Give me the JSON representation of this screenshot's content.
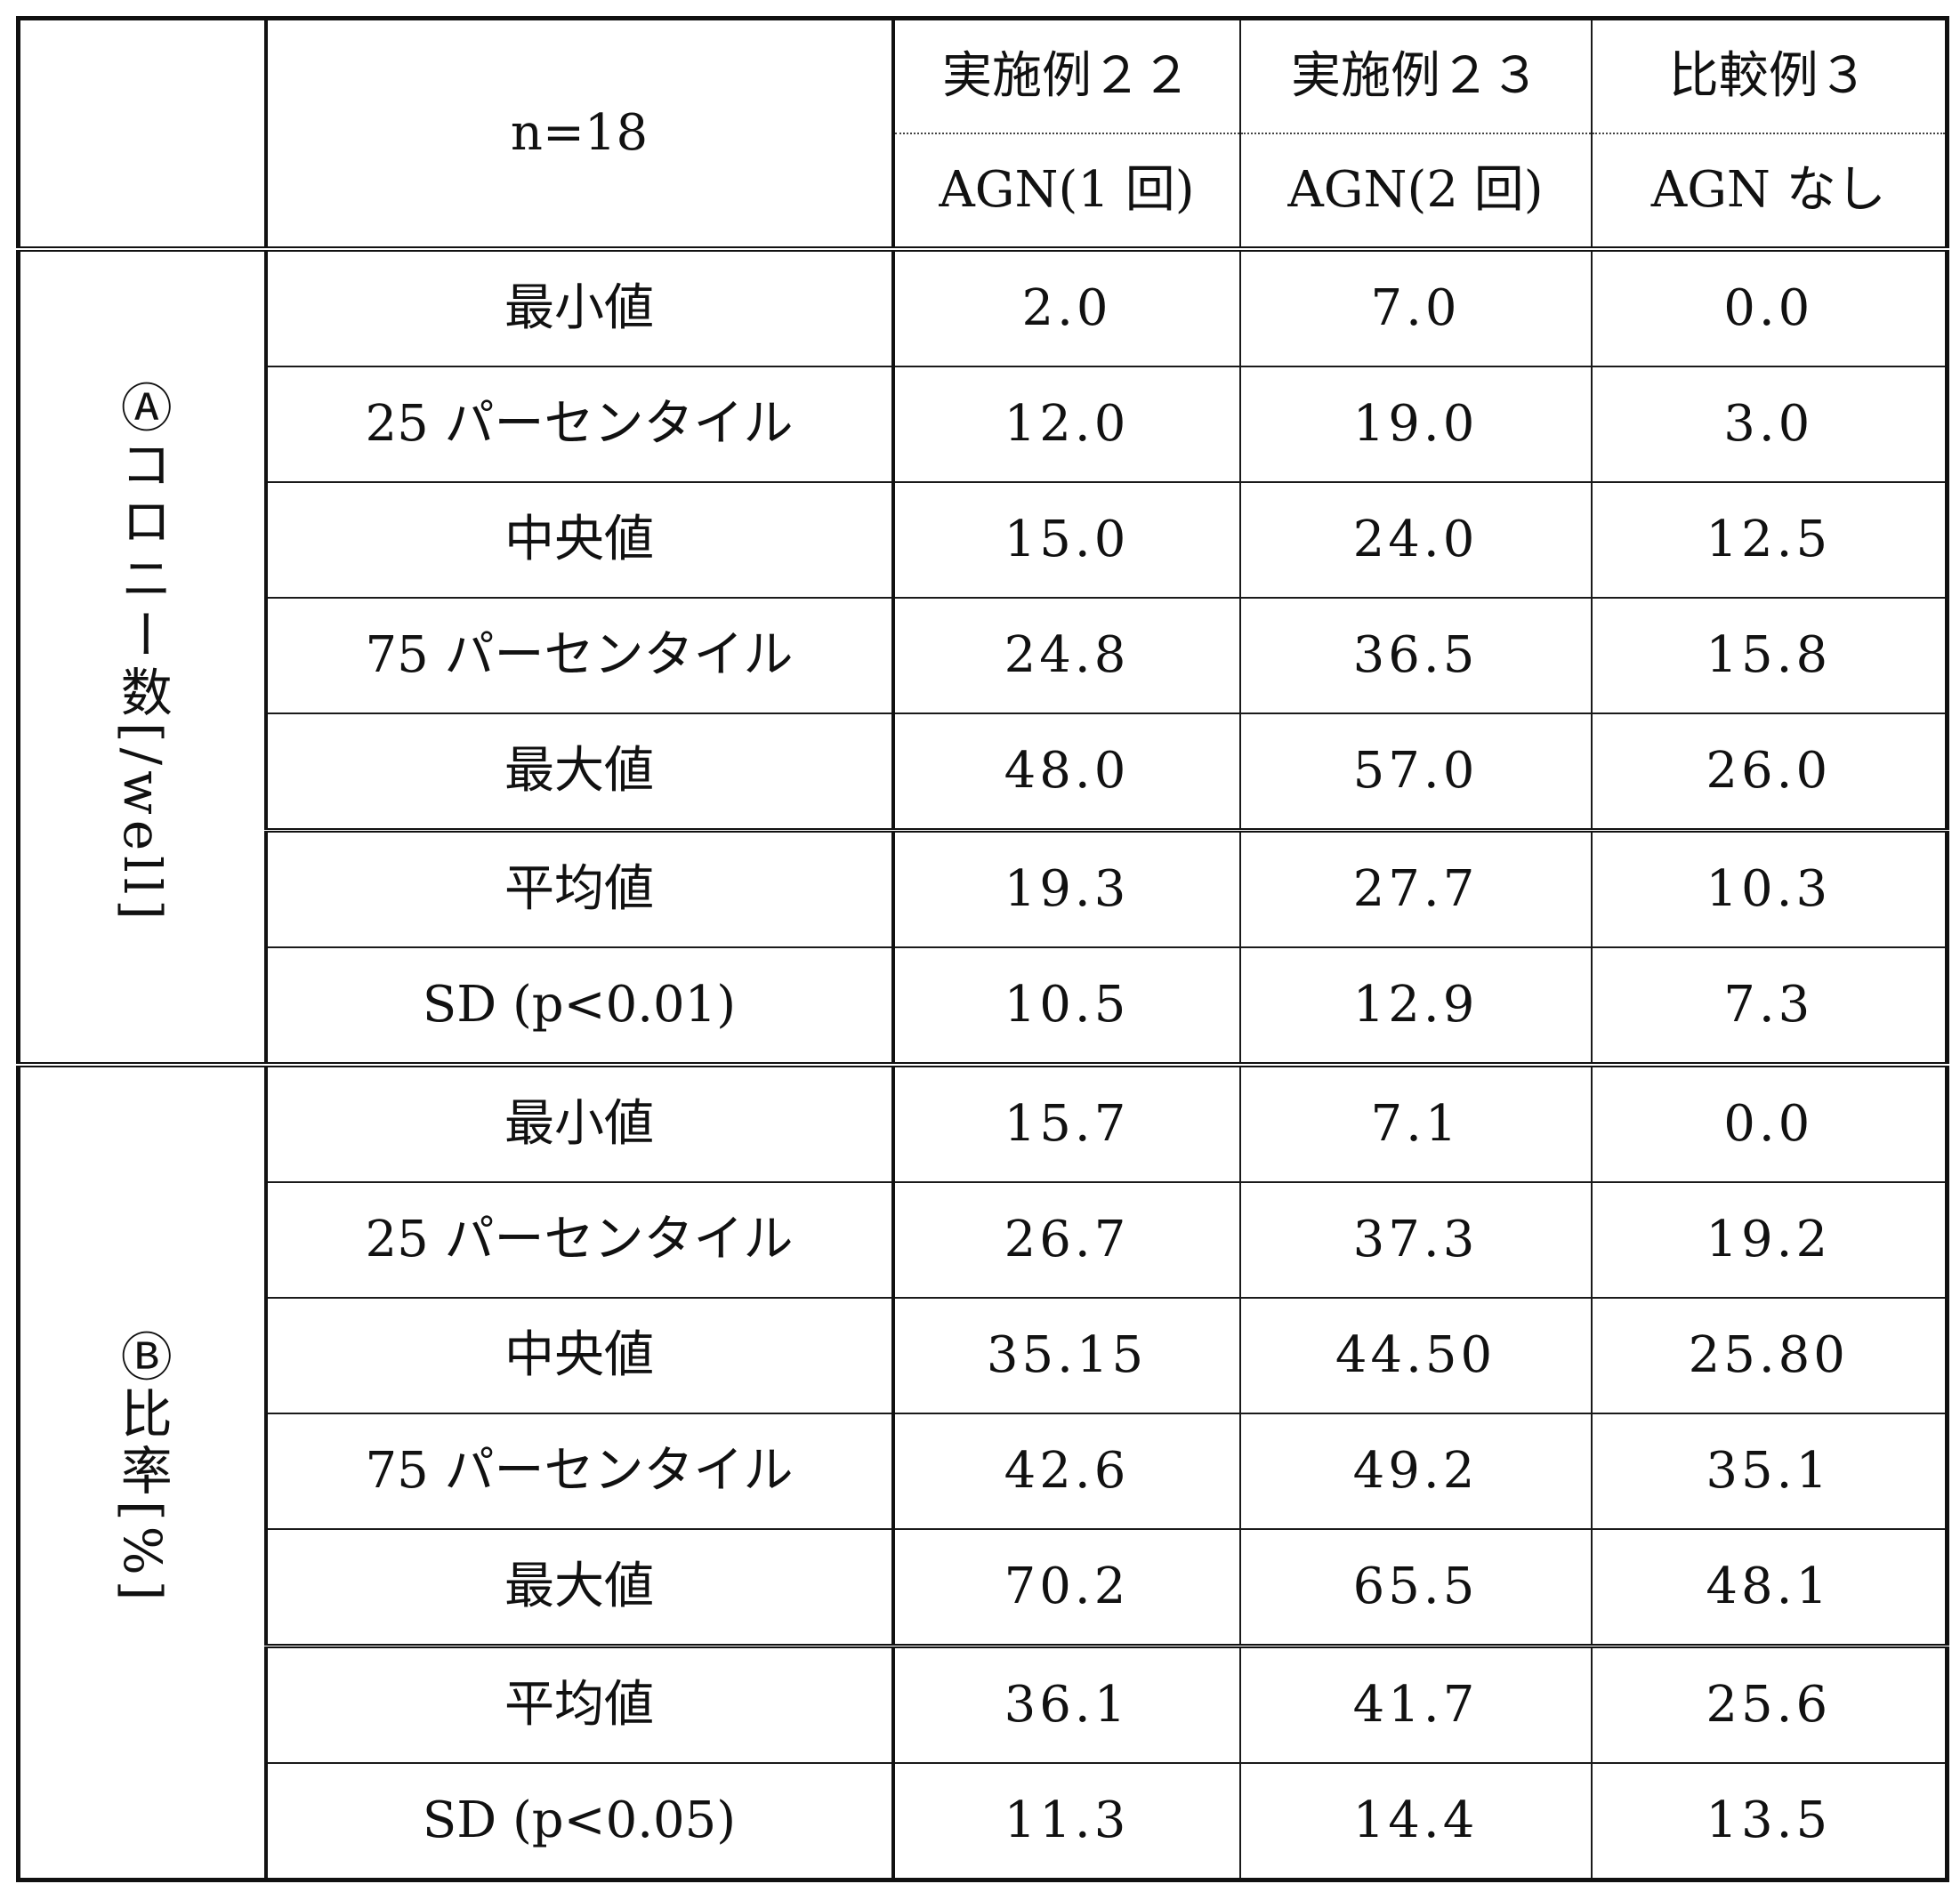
{
  "header": {
    "n_label": "n=18",
    "columns": [
      {
        "name": "実施例２２",
        "condition": "AGN(1 回)"
      },
      {
        "name": "実施例２３",
        "condition": "AGN(2 回)"
      },
      {
        "name": "比較例３",
        "condition": "AGN なし"
      }
    ]
  },
  "sections": [
    {
      "label_prefix": "Ⓐ",
      "label_text": "コロニー数",
      "label_unit": "[/well]",
      "rows": [
        {
          "label": "最小値",
          "values": [
            "2.0",
            "7.0",
            "0.0"
          ]
        },
        {
          "label": "25 パーセンタイル",
          "values": [
            "12.0",
            "19.0",
            "3.0"
          ]
        },
        {
          "label": "中央値",
          "values": [
            "15.0",
            "24.0",
            "12.5"
          ]
        },
        {
          "label": "75 パーセンタイル",
          "values": [
            "24.8",
            "36.5",
            "15.8"
          ]
        },
        {
          "label": "最大値",
          "values": [
            "48.0",
            "57.0",
            "26.0"
          ]
        },
        {
          "label": "平均値",
          "values": [
            "19.3",
            "27.7",
            "10.3"
          ]
        },
        {
          "label": "SD (p<0.01)",
          "values": [
            "10.5",
            "12.9",
            "7.3"
          ]
        }
      ]
    },
    {
      "label_prefix": "Ⓑ",
      "label_text": "比率",
      "label_unit": "[%]",
      "rows": [
        {
          "label": "最小値",
          "values": [
            "15.7",
            "7.1",
            "0.0"
          ]
        },
        {
          "label": "25 パーセンタイル",
          "values": [
            "26.7",
            "37.3",
            "19.2"
          ]
        },
        {
          "label": "中央値",
          "values": [
            "35.15",
            "44.50",
            "25.80"
          ]
        },
        {
          "label": "75 パーセンタイル",
          "values": [
            "42.6",
            "49.2",
            "35.1"
          ]
        },
        {
          "label": "最大値",
          "values": [
            "70.2",
            "65.5",
            "48.1"
          ]
        },
        {
          "label": "平均値",
          "values": [
            "36.1",
            "41.7",
            "25.6"
          ]
        },
        {
          "label": "SD (p<0.05)",
          "values": [
            "11.3",
            "14.4",
            "13.5"
          ]
        }
      ]
    }
  ]
}
